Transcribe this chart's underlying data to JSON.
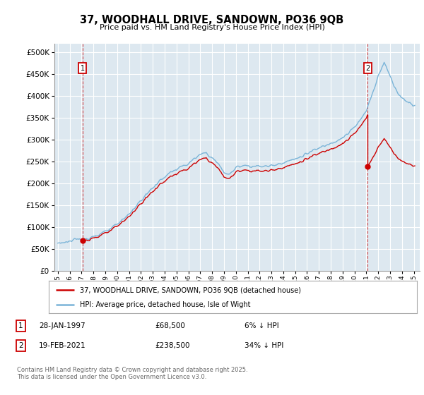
{
  "title": "37, WOODHALL DRIVE, SANDOWN, PO36 9QB",
  "subtitle": "Price paid vs. HM Land Registry's House Price Index (HPI)",
  "legend_line1": "37, WOODHALL DRIVE, SANDOWN, PO36 9QB (detached house)",
  "legend_line2": "HPI: Average price, detached house, Isle of Wight",
  "footnote": "Contains HM Land Registry data © Crown copyright and database right 2025.\nThis data is licensed under the Open Government Licence v3.0.",
  "hpi_color": "#7ab4d8",
  "price_color": "#cc0000",
  "background_color": "#dde8f0",
  "grid_color": "#ffffff",
  "ylim": [
    0,
    520000
  ],
  "yticks": [
    0,
    50000,
    100000,
    150000,
    200000,
    250000,
    300000,
    350000,
    400000,
    450000,
    500000
  ],
  "t1_year": 1997.08,
  "t2_year": 2021.12,
  "t1_price": 68500,
  "t2_price": 238500,
  "hpi_anchors_t": [
    1995.0,
    1996.0,
    1997.0,
    1998.0,
    1999.0,
    2000.0,
    2001.0,
    2002.0,
    2003.0,
    2004.0,
    2004.5,
    2005.0,
    2006.0,
    2007.0,
    2007.5,
    2008.0,
    2008.5,
    2009.0,
    2009.5,
    2010.0,
    2010.5,
    2011.0,
    2012.0,
    2013.0,
    2014.0,
    2015.0,
    2016.0,
    2017.0,
    2018.0,
    2019.0,
    2019.5,
    2020.0,
    2020.5,
    2021.0,
    2021.12,
    2021.3,
    2021.7,
    2022.0,
    2022.3,
    2022.5,
    2022.7,
    2023.0,
    2023.3,
    2023.5,
    2023.7,
    2024.0,
    2024.3,
    2024.5,
    2024.8,
    2025.0
  ],
  "hpi_anchors_v": [
    63000,
    67000,
    72000,
    78000,
    88000,
    105000,
    130000,
    160000,
    190000,
    215000,
    225000,
    232000,
    245000,
    265000,
    270000,
    258000,
    245000,
    225000,
    220000,
    235000,
    242000,
    240000,
    238000,
    240000,
    248000,
    255000,
    268000,
    280000,
    292000,
    305000,
    315000,
    328000,
    345000,
    365000,
    375000,
    390000,
    420000,
    448000,
    465000,
    475000,
    465000,
    445000,
    425000,
    415000,
    405000,
    395000,
    390000,
    388000,
    382000,
    378000
  ]
}
